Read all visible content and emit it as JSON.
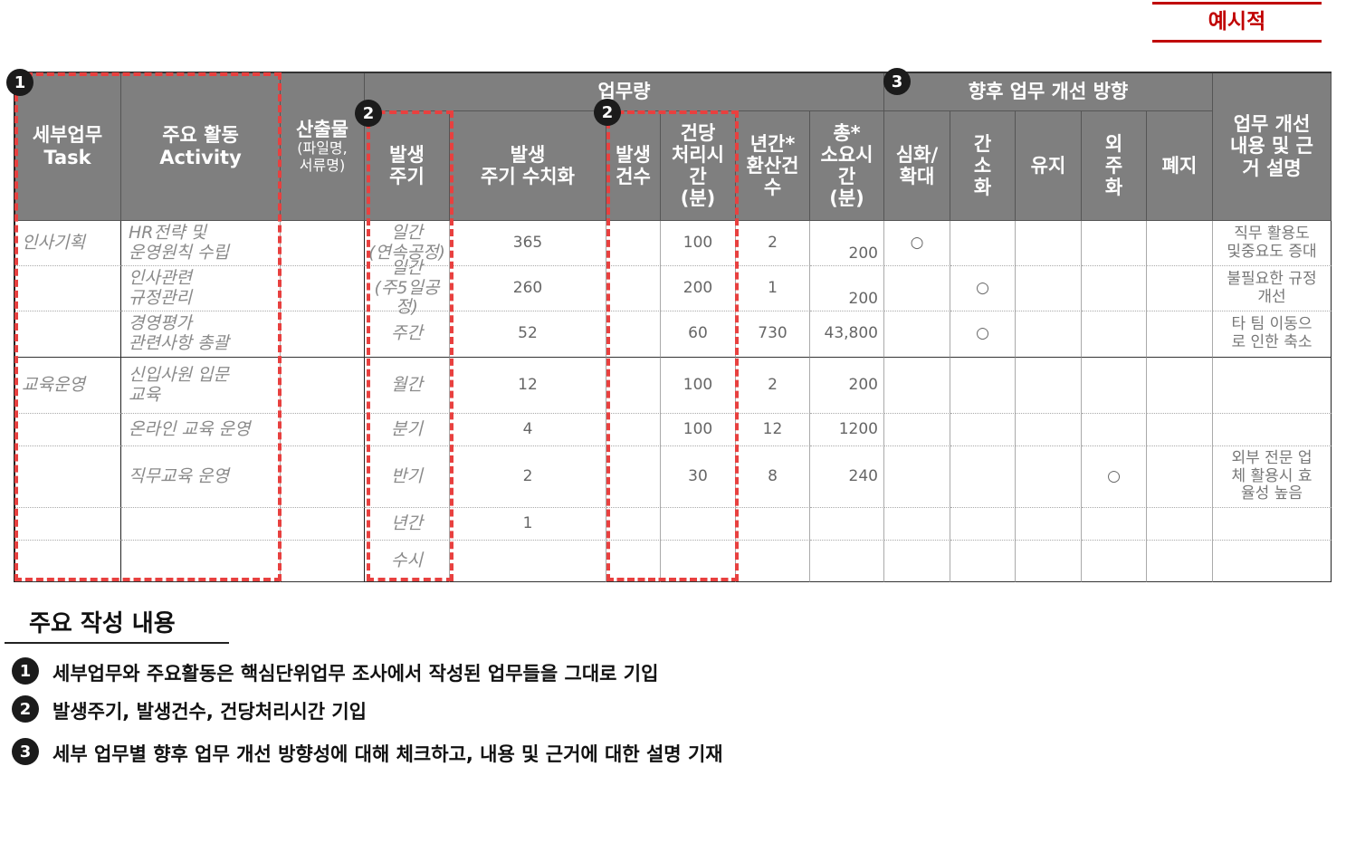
{
  "badge": "예시적",
  "table": {
    "groups": [
      "업무량",
      "향후 업무 개선 방향"
    ],
    "columns": [
      "세부업무\nTask",
      "주요 활동\nActivity",
      {
        "main": "산출물",
        "sub": "(파일명,\n서류명)"
      },
      "발생\n주기",
      "발생\n주기 수치화",
      "발생\n건수",
      "건당\n처리시\n간\n(분)",
      "년간*\n환산건\n수",
      "총*\n소요시\n간\n(분)",
      "심화/\n확대",
      "간\n소\n화",
      "유지",
      "외\n주\n화",
      "폐지",
      "업무 개선\n내용 및 근\n거 설명"
    ],
    "rows": [
      [
        "인사기획",
        "HR전략 및\n운영원칙 수립",
        null,
        "일간\n(연속공정)",
        "365",
        null,
        "100",
        "2",
        "200",
        "○",
        null,
        null,
        null,
        null,
        "직무 활용도\n및중요도 증대"
      ],
      [
        null,
        "인사관련\n규정관리",
        null,
        "일간\n(주5일공정)",
        "260",
        null,
        "200",
        "1",
        "200",
        null,
        "○",
        null,
        null,
        null,
        "불필요한 규정\n개선"
      ],
      [
        null,
        "경영평가\n관련사항 총괄",
        null,
        "주간",
        "52",
        null,
        "60",
        "730",
        "43,800",
        null,
        "○",
        null,
        null,
        null,
        "타 팀 이동으\n로 인한 축소"
      ],
      [
        "교육운영",
        "신입사원 입문\n교육",
        null,
        "월간",
        "12",
        null,
        "100",
        "2",
        "200",
        null,
        null,
        null,
        null,
        null,
        null
      ],
      [
        null,
        "온라인 교육 운영",
        null,
        "분기",
        "4",
        null,
        "100",
        "12",
        "1200",
        null,
        null,
        null,
        null,
        null,
        null
      ],
      [
        null,
        "직무교육 운영",
        null,
        "반기",
        "2",
        null,
        "30",
        "8",
        "240",
        null,
        null,
        null,
        "○",
        null,
        "외부 전문 업\n체 활용시 효\n율성 높음"
      ],
      [
        null,
        null,
        null,
        "년간",
        "1",
        null,
        null,
        null,
        null,
        null,
        null,
        null,
        null,
        null,
        null
      ],
      [
        null,
        null,
        null,
        "수시",
        null,
        null,
        null,
        null,
        null,
        null,
        null,
        null,
        null,
        null,
        null
      ]
    ]
  },
  "markers": [
    "1",
    "2",
    "2",
    "3"
  ],
  "notes": {
    "title": "주요 작성 내용",
    "items": [
      {
        "number": "1",
        "text": "세부업무와 주요활동은 핵심단위업무 조사에서 작성된 업무들을 그대로 기입"
      },
      {
        "number": "2",
        "text": "발생주기, 발생건수, 건당처리시간 기입"
      },
      {
        "number": "3",
        "text": "세부 업무별 향후 업무 개선 방향성에 대해 체크하고, 내용 및 근거에 대한 설명 기재"
      }
    ]
  }
}
